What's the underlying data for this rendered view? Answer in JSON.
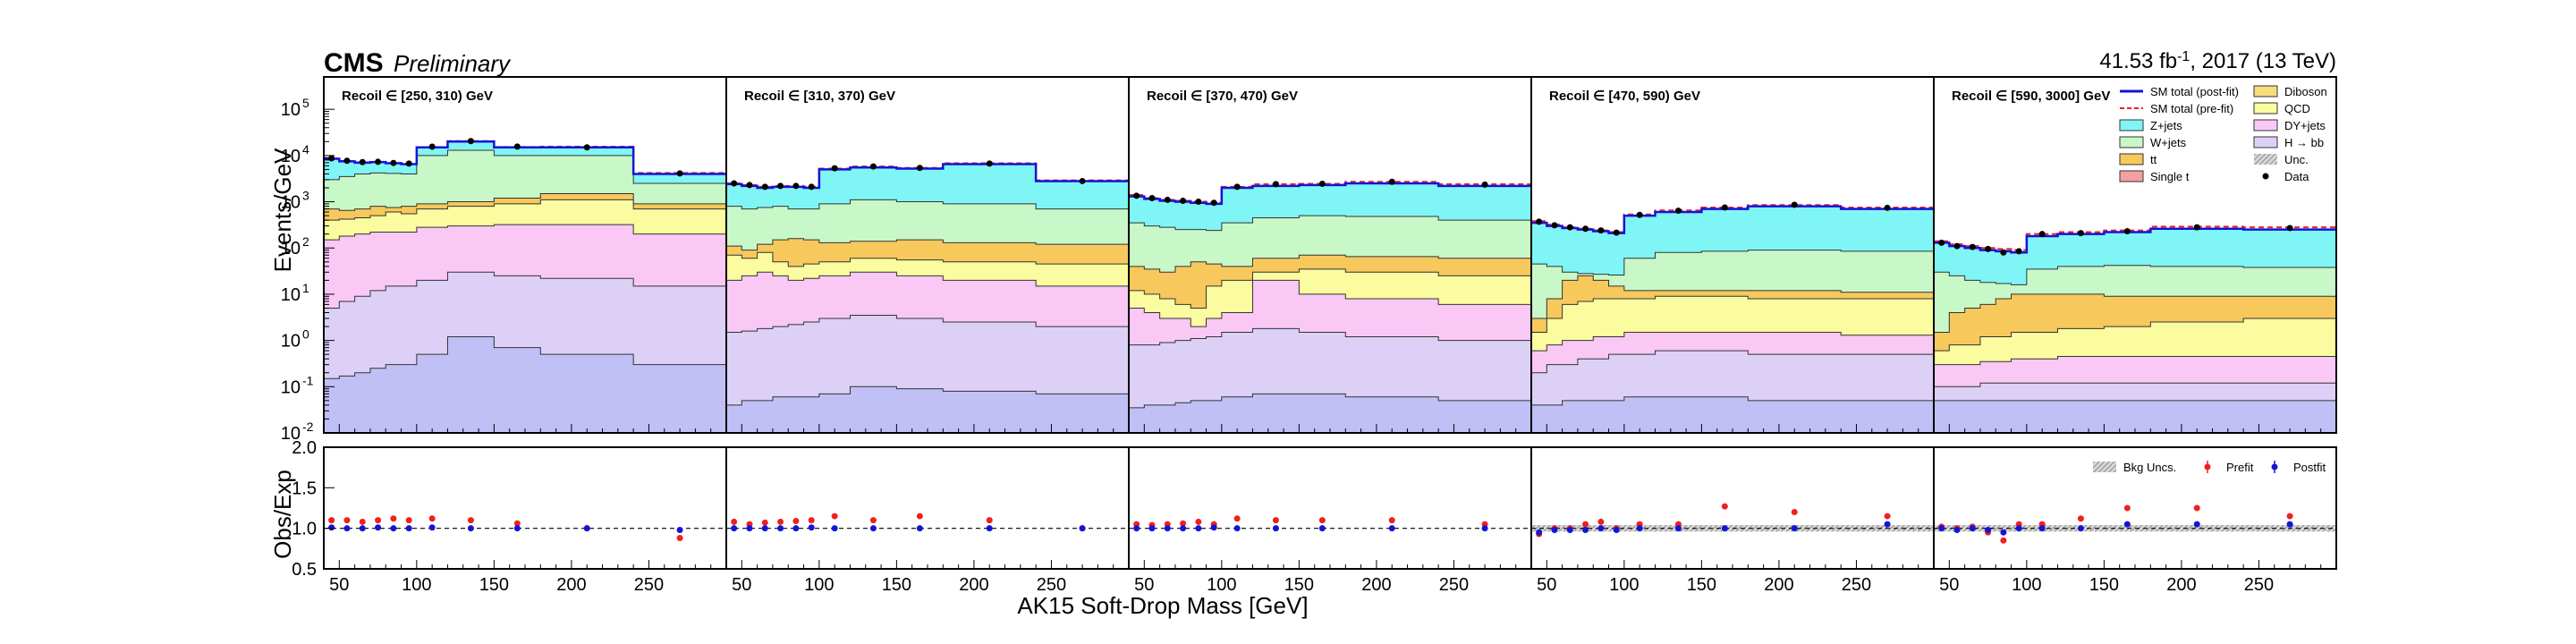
{
  "header": {
    "experiment": "CMS",
    "status": "Preliminary",
    "lumi": "41.53 fb",
    "lumi_exp": "-1",
    "lumi_rest": ", 2017 (13 TeV)"
  },
  "colors": {
    "Z+jets": "#7ff5f5",
    "W+jets": "#c8f7c8",
    "ttbar": "#f7c85c",
    "Single t": "#f5a0a0",
    "Diboson": "#f7dc7a",
    "QCD": "#fbfb9f",
    "DY+jets": "#f9c8f4",
    "Hbb": "#dcd0f7",
    "extra": "#c0c0f7",
    "postfit": "#1414d8",
    "prefit": "#f02020"
  },
  "chart_data": {
    "type": "area",
    "xlabel": "AK15 Soft-Drop Mass [GeV]",
    "ylabel_top": "Events/GeV",
    "ylabel_bottom": "Obs/Exp",
    "xlim": [
      40,
      300
    ],
    "ylim_top_log10": [
      -2,
      5.7
    ],
    "ylim_bottom": [
      0.5,
      2.0
    ],
    "y_ticks_top": [
      "10",
      "10",
      "10",
      "10",
      "10",
      "10",
      "10",
      "10"
    ],
    "y_tick_exps": [
      "-2",
      "-1",
      "0",
      "1",
      "2",
      "3",
      "4",
      "5"
    ],
    "y_ticks_bottom": [
      "0.5",
      "1.0",
      "1.5",
      "2.0"
    ],
    "x_tick_labels": [
      "50",
      "100",
      "150",
      "200",
      "250"
    ],
    "bin_edges": [
      40,
      50,
      60,
      70,
      80,
      90,
      100,
      120,
      150,
      180,
      240,
      300
    ],
    "legend": [
      {
        "label": "SM total (post-fit)",
        "kind": "line",
        "color": "#1414d8"
      },
      {
        "label": "Diboson",
        "kind": "box",
        "color": "#f7dc7a"
      },
      {
        "label": "SM total (pre-fit)",
        "kind": "dash",
        "color": "#f02020"
      },
      {
        "label": "QCD",
        "kind": "box",
        "color": "#fbfb9f"
      },
      {
        "label": "Z+jets",
        "kind": "box",
        "color": "#7ff5f5"
      },
      {
        "label": "DY+jets",
        "kind": "box",
        "color": "#f9c8f4"
      },
      {
        "label": "W+jets",
        "kind": "box",
        "color": "#c8f7c8"
      },
      {
        "label": "H → bb",
        "kind": "box",
        "color": "#dcd0f7"
      },
      {
        "label": "tt",
        "kind": "box",
        "color": "#f7c85c"
      },
      {
        "label": "Unc.",
        "kind": "hatch",
        "color": "#888888"
      },
      {
        "label": "Single t",
        "kind": "box",
        "color": "#f5a0a0"
      },
      {
        "label": "Data",
        "kind": "dot",
        "color": "#000000"
      }
    ],
    "ratio_legend": [
      {
        "label": "Bkg Uncs.",
        "kind": "hatch"
      },
      {
        "label": "Prefit",
        "kind": "red"
      },
      {
        "label": "Postfit",
        "kind": "blue"
      }
    ],
    "panels": [
      {
        "label": "Recoil ∈ [250, 310) GeV",
        "stacks": [
          [
            0.15,
            0.17,
            0.2,
            0.25,
            0.3,
            0.3,
            0.5,
            1.2,
            0.7,
            0.5,
            0.3
          ],
          [
            5,
            7,
            9,
            12,
            15,
            15,
            20,
            30,
            25,
            22,
            15
          ],
          [
            150,
            180,
            200,
            220,
            220,
            220,
            280,
            300,
            320,
            320,
            200
          ],
          [
            400,
            420,
            450,
            500,
            600,
            550,
            700,
            800,
            900,
            1100,
            700
          ],
          [
            700,
            650,
            700,
            800,
            750,
            800,
            900,
            1000,
            1200,
            1500,
            900
          ],
          [
            3000,
            3500,
            4000,
            4200,
            4100,
            4000,
            10000,
            13000,
            10000,
            10000,
            2500
          ],
          [
            8500,
            7500,
            7000,
            7200,
            6800,
            6500,
            15000,
            20000,
            15000,
            15000,
            4000
          ]
        ],
        "prefit": [
          8600,
          7600,
          7100,
          7300,
          6900,
          6600,
          15200,
          20500,
          15300,
          15500,
          4200
        ],
        "data": [
          8700,
          7700,
          7200,
          7300,
          6900,
          6700,
          15500,
          20500,
          15600,
          15000,
          4100
        ],
        "ratio_pre": [
          1.1,
          1.1,
          1.08,
          1.1,
          1.12,
          1.1,
          1.12,
          1.1,
          1.06,
          1.0,
          0.88
        ],
        "ratio_post": [
          1.01,
          1.0,
          1.0,
          1.01,
          1.0,
          1.0,
          1.01,
          1.0,
          1.0,
          1.0,
          0.98
        ]
      },
      {
        "label": "Recoil ∈ [310, 370) GeV",
        "stacks": [
          [
            0.04,
            0.05,
            0.05,
            0.06,
            0.06,
            0.06,
            0.07,
            0.1,
            0.09,
            0.08,
            0.07
          ],
          [
            1.5,
            1.6,
            1.8,
            2.0,
            2.2,
            2.5,
            3.0,
            3.5,
            3.0,
            2.5,
            2.0
          ],
          [
            20,
            25,
            30,
            25,
            20,
            22,
            25,
            30,
            25,
            20,
            15
          ],
          [
            70,
            60,
            80,
            50,
            40,
            45,
            50,
            60,
            55,
            50,
            45
          ],
          [
            110,
            90,
            120,
            150,
            160,
            150,
            130,
            140,
            150,
            130,
            120
          ],
          [
            800,
            700,
            750,
            800,
            700,
            700,
            900,
            1100,
            1000,
            900,
            700
          ],
          [
            2400,
            2200,
            2000,
            2100,
            2100,
            2000,
            5000,
            5500,
            5200,
            6500,
            2800
          ]
        ],
        "prefit": [
          2500,
          2300,
          2100,
          2200,
          2200,
          2100,
          5200,
          5800,
          5400,
          6800,
          2900
        ],
        "data": [
          2500,
          2300,
          2100,
          2200,
          2200,
          2100,
          5300,
          5800,
          5400,
          6700,
          2800
        ],
        "ratio_pre": [
          1.08,
          1.05,
          1.07,
          1.08,
          1.09,
          1.1,
          1.15,
          1.1,
          1.15,
          1.1,
          1.0
        ],
        "ratio_post": [
          1.0,
          1.0,
          1.0,
          1.0,
          1.0,
          1.01,
          1.0,
          1.0,
          1.0,
          1.0,
          1.0
        ]
      },
      {
        "label": "Recoil ∈ [370, 470) GeV",
        "stacks": [
          [
            0.035,
            0.04,
            0.04,
            0.045,
            0.05,
            0.05,
            0.06,
            0.07,
            0.07,
            0.06,
            0.05
          ],
          [
            0.8,
            0.8,
            0.9,
            1.0,
            1.1,
            1.2,
            1.5,
            1.8,
            1.5,
            1.2,
            1.0
          ],
          [
            5,
            4,
            3,
            3,
            2,
            3,
            4,
            20,
            10,
            8,
            6
          ],
          [
            12,
            10,
            8,
            6,
            5,
            15,
            20,
            30,
            35,
            30,
            25
          ],
          [
            40,
            35,
            30,
            40,
            50,
            45,
            40,
            60,
            70,
            65,
            60
          ],
          [
            350,
            300,
            280,
            250,
            250,
            240,
            350,
            450,
            500,
            480,
            400
          ],
          [
            1300,
            1150,
            1050,
            1000,
            950,
            900,
            2000,
            2200,
            2300,
            2500,
            2200
          ]
        ],
        "prefit": [
          1400,
          1200,
          1100,
          1050,
          1000,
          950,
          2100,
          2400,
          2450,
          2700,
          2400
        ],
        "data": [
          1350,
          1200,
          1100,
          1050,
          1000,
          950,
          2100,
          2400,
          2450,
          2700,
          2350
        ],
        "ratio_pre": [
          1.05,
          1.04,
          1.05,
          1.06,
          1.08,
          1.05,
          1.12,
          1.1,
          1.1,
          1.1,
          1.05
        ],
        "ratio_post": [
          1.0,
          1.0,
          1.0,
          1.0,
          1.0,
          1.01,
          1.0,
          1.0,
          1.0,
          1.0,
          1.0
        ]
      },
      {
        "label": "Recoil ∈ [470, 590) GeV",
        "stacks": [
          [
            0.04,
            0.04,
            0.05,
            0.05,
            0.05,
            0.05,
            0.06,
            0.06,
            0.06,
            0.05,
            0.05
          ],
          [
            0.2,
            0.3,
            0.3,
            0.4,
            0.4,
            0.5,
            0.5,
            0.6,
            0.6,
            0.5,
            0.5
          ],
          [
            0.6,
            0.8,
            1.0,
            1.0,
            1.2,
            1.2,
            1.5,
            1.5,
            1.5,
            1.5,
            1.3
          ],
          [
            1.5,
            3,
            6,
            7,
            8,
            8,
            8,
            9,
            9,
            8,
            8
          ],
          [
            3,
            8,
            20,
            25,
            20,
            15,
            12,
            12,
            12,
            12,
            11
          ],
          [
            45,
            40,
            30,
            28,
            27,
            26,
            60,
            80,
            85,
            90,
            85
          ],
          [
            350,
            300,
            270,
            250,
            230,
            210,
            500,
            600,
            700,
            800,
            700
          ]
        ],
        "prefit": [
          380,
          320,
          280,
          260,
          240,
          220,
          530,
          650,
          750,
          850,
          750
        ],
        "data": [
          370,
          310,
          280,
          260,
          240,
          215,
          520,
          640,
          750,
          860,
          740
        ],
        "ratio_pre": [
          0.93,
          1.0,
          1.0,
          1.05,
          1.08,
          1.0,
          1.05,
          1.05,
          1.27,
          1.2,
          1.15
        ],
        "ratio_post": [
          0.95,
          0.98,
          0.98,
          0.98,
          1.0,
          0.98,
          1.0,
          1.0,
          1.0,
          1.0,
          1.05
        ]
      },
      {
        "label": "Recoil ∈ [590, 3000] GeV",
        "stacks": [
          [
            0.05,
            0.05,
            0.05,
            0.05,
            0.05,
            0.05,
            0.05,
            0.05,
            0.05,
            0.05,
            0.05
          ],
          [
            0.1,
            0.1,
            0.1,
            0.12,
            0.12,
            0.12,
            0.12,
            0.12,
            0.12,
            0.12,
            0.12
          ],
          [
            0.3,
            0.3,
            0.3,
            0.35,
            0.35,
            0.4,
            0.4,
            0.45,
            0.45,
            0.45,
            0.45
          ],
          [
            0.6,
            0.8,
            0.8,
            1.2,
            1.2,
            1.5,
            1.5,
            1.8,
            2.0,
            2.5,
            3.0
          ],
          [
            1.5,
            4,
            5,
            6,
            8,
            10,
            10,
            10,
            9,
            9,
            9
          ],
          [
            30,
            25,
            20,
            18,
            17,
            16,
            35,
            40,
            42,
            40,
            38
          ],
          [
            130,
            110,
            100,
            90,
            85,
            80,
            180,
            200,
            220,
            260,
            250
          ]
        ],
        "prefit": [
          140,
          120,
          110,
          100,
          95,
          90,
          200,
          220,
          240,
          290,
          280
        ],
        "data": [
          130,
          110,
          105,
          95,
          80,
          85,
          200,
          210,
          230,
          280,
          270
        ],
        "ratio_pre": [
          1.02,
          1.0,
          1.02,
          0.95,
          0.85,
          1.05,
          1.05,
          1.12,
          1.25,
          1.25,
          1.15
        ],
        "ratio_post": [
          1.0,
          0.98,
          1.0,
          0.98,
          0.95,
          1.0,
          1.0,
          1.0,
          1.05,
          1.05,
          1.05
        ]
      }
    ]
  }
}
